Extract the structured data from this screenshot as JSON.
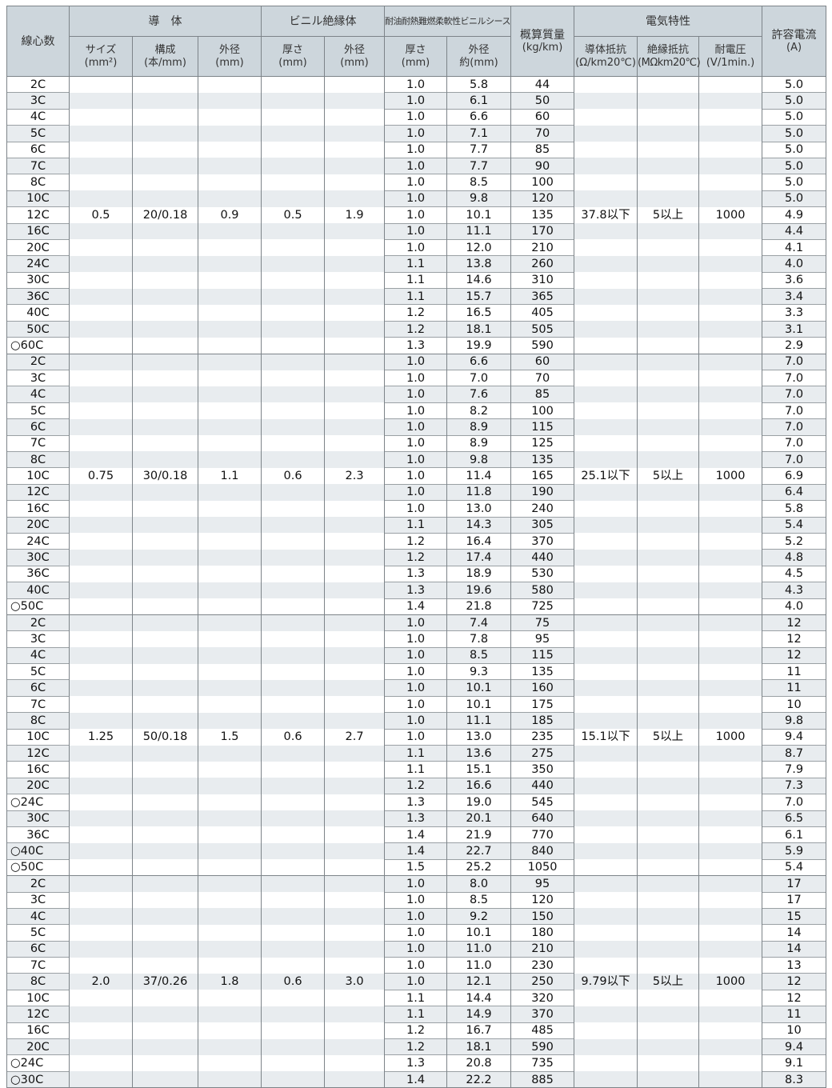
{
  "header": {
    "cores": "線心数",
    "conductor": "導　体",
    "size": "サイズ",
    "size_unit": "(mm²)",
    "strand": "構成",
    "strand_unit": "(本/mm)",
    "cond_od": "外径",
    "cond_od_unit": "(mm)",
    "insulation": "ビニル絶縁体",
    "ins_thick": "厚さ",
    "ins_thick_unit": "(mm)",
    "ins_od": "外径",
    "ins_od_unit": "(mm)",
    "sheath": "耐油耐熱難燃柔軟性ビニルシース",
    "sh_thick": "厚さ",
    "sh_thick_unit": "(mm)",
    "sh_od": "外径",
    "sh_od_unit": "約(mm)",
    "mass": "概算質量",
    "mass_unit": "(kg/km)",
    "electrical": "電気特性",
    "resistance": "導体抵抗",
    "resistance_unit": "(Ω/km20℃)",
    "insulation_res": "絶縁抵抗",
    "insulation_res_unit": "(MΩkm20℃)",
    "withstand": "耐電圧",
    "withstand_unit": "(V/1min.)",
    "current": "許容電流",
    "current_unit": "(A)"
  },
  "groups": [
    {
      "size": "0.5",
      "strand": "20/0.18",
      "cond_od": "0.9",
      "ins_thick": "0.5",
      "ins_od": "1.9",
      "resistance": "37.8以下",
      "insulation_res": "5以上",
      "withstand": "1000",
      "label_row": 8,
      "rows": [
        [
          "2C",
          "1.0",
          "5.8",
          "44",
          "5.0"
        ],
        [
          "3C",
          "1.0",
          "6.1",
          "50",
          "5.0"
        ],
        [
          "4C",
          "1.0",
          "6.6",
          "60",
          "5.0"
        ],
        [
          "5C",
          "1.0",
          "7.1",
          "70",
          "5.0"
        ],
        [
          "6C",
          "1.0",
          "7.7",
          "85",
          "5.0"
        ],
        [
          "7C",
          "1.0",
          "7.7",
          "90",
          "5.0"
        ],
        [
          "8C",
          "1.0",
          "8.5",
          "100",
          "5.0"
        ],
        [
          "10C",
          "1.0",
          "9.8",
          "120",
          "5.0"
        ],
        [
          "12C",
          "1.0",
          "10.1",
          "135",
          "4.9"
        ],
        [
          "16C",
          "1.0",
          "11.1",
          "170",
          "4.4"
        ],
        [
          "20C",
          "1.0",
          "12.0",
          "210",
          "4.1"
        ],
        [
          "24C",
          "1.1",
          "13.8",
          "260",
          "4.0"
        ],
        [
          "30C",
          "1.1",
          "14.6",
          "310",
          "3.6"
        ],
        [
          "36C",
          "1.1",
          "15.7",
          "365",
          "3.4"
        ],
        [
          "40C",
          "1.2",
          "16.5",
          "405",
          "3.3"
        ],
        [
          "50C",
          "1.2",
          "18.1",
          "505",
          "3.1"
        ],
        [
          "○60C",
          "1.3",
          "19.9",
          "590",
          "2.9"
        ]
      ]
    },
    {
      "size": "0.75",
      "strand": "30/0.18",
      "cond_od": "1.1",
      "ins_thick": "0.6",
      "ins_od": "2.3",
      "resistance": "25.1以下",
      "insulation_res": "5以上",
      "withstand": "1000",
      "label_row": 7,
      "rows": [
        [
          "2C",
          "1.0",
          "6.6",
          "60",
          "7.0"
        ],
        [
          "3C",
          "1.0",
          "7.0",
          "70",
          "7.0"
        ],
        [
          "4C",
          "1.0",
          "7.6",
          "85",
          "7.0"
        ],
        [
          "5C",
          "1.0",
          "8.2",
          "100",
          "7.0"
        ],
        [
          "6C",
          "1.0",
          "8.9",
          "115",
          "7.0"
        ],
        [
          "7C",
          "1.0",
          "8.9",
          "125",
          "7.0"
        ],
        [
          "8C",
          "1.0",
          "9.8",
          "135",
          "7.0"
        ],
        [
          "10C",
          "1.0",
          "11.4",
          "165",
          "6.9"
        ],
        [
          "12C",
          "1.0",
          "11.8",
          "190",
          "6.4"
        ],
        [
          "16C",
          "1.0",
          "13.0",
          "240",
          "5.8"
        ],
        [
          "20C",
          "1.1",
          "14.3",
          "305",
          "5.4"
        ],
        [
          "24C",
          "1.2",
          "16.4",
          "370",
          "5.2"
        ],
        [
          "30C",
          "1.2",
          "17.4",
          "440",
          "4.8"
        ],
        [
          "36C",
          "1.3",
          "18.9",
          "530",
          "4.5"
        ],
        [
          "40C",
          "1.3",
          "19.6",
          "580",
          "4.3"
        ],
        [
          "○50C",
          "1.4",
          "21.8",
          "725",
          "4.0"
        ]
      ]
    },
    {
      "size": "1.25",
      "strand": "50/0.18",
      "cond_od": "1.5",
      "ins_thick": "0.6",
      "ins_od": "2.7",
      "resistance": "15.1以下",
      "insulation_res": "5以上",
      "withstand": "1000",
      "label_row": 7,
      "rows": [
        [
          "2C",
          "1.0",
          "7.4",
          "75",
          "12"
        ],
        [
          "3C",
          "1.0",
          "7.8",
          "95",
          "12"
        ],
        [
          "4C",
          "1.0",
          "8.5",
          "115",
          "12"
        ],
        [
          "5C",
          "1.0",
          "9.3",
          "135",
          "11"
        ],
        [
          "6C",
          "1.0",
          "10.1",
          "160",
          "11"
        ],
        [
          "7C",
          "1.0",
          "10.1",
          "175",
          "10"
        ],
        [
          "8C",
          "1.0",
          "11.1",
          "185",
          "9.8"
        ],
        [
          "10C",
          "1.0",
          "13.0",
          "235",
          "9.4"
        ],
        [
          "12C",
          "1.1",
          "13.6",
          "275",
          "8.7"
        ],
        [
          "16C",
          "1.1",
          "15.1",
          "350",
          "7.9"
        ],
        [
          "20C",
          "1.2",
          "16.6",
          "440",
          "7.3"
        ],
        [
          "○24C",
          "1.3",
          "19.0",
          "545",
          "7.0"
        ],
        [
          "30C",
          "1.3",
          "20.1",
          "640",
          "6.5"
        ],
        [
          "36C",
          "1.4",
          "21.9",
          "770",
          "6.1"
        ],
        [
          "○40C",
          "1.4",
          "22.7",
          "840",
          "5.9"
        ],
        [
          "○50C",
          "1.5",
          "25.2",
          "1050",
          "5.4"
        ]
      ]
    },
    {
      "size": "2.0",
      "strand": "37/0.26",
      "cond_od": "1.8",
      "ins_thick": "0.6",
      "ins_od": "3.0",
      "resistance": "9.79以下",
      "insulation_res": "5以上",
      "withstand": "1000",
      "label_row": 6,
      "rows": [
        [
          "2C",
          "1.0",
          "8.0",
          "95",
          "17"
        ],
        [
          "3C",
          "1.0",
          "8.5",
          "120",
          "17"
        ],
        [
          "4C",
          "1.0",
          "9.2",
          "150",
          "15"
        ],
        [
          "5C",
          "1.0",
          "10.1",
          "180",
          "14"
        ],
        [
          "6C",
          "1.0",
          "11.0",
          "210",
          "14"
        ],
        [
          "7C",
          "1.0",
          "11.0",
          "230",
          "13"
        ],
        [
          "8C",
          "1.0",
          "12.1",
          "250",
          "12"
        ],
        [
          "10C",
          "1.1",
          "14.4",
          "320",
          "12"
        ],
        [
          "12C",
          "1.1",
          "14.9",
          "370",
          "11"
        ],
        [
          "16C",
          "1.2",
          "16.7",
          "485",
          "10"
        ],
        [
          "20C",
          "1.2",
          "18.1",
          "590",
          "9.4"
        ],
        [
          "○24C",
          "1.3",
          "20.8",
          "735",
          "9.1"
        ],
        [
          "○30C",
          "1.4",
          "22.2",
          "885",
          "8.3"
        ]
      ]
    }
  ]
}
